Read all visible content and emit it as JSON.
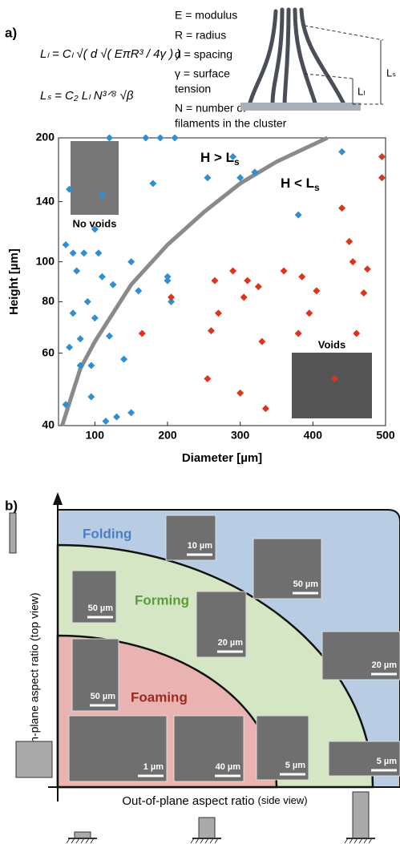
{
  "panel_labels": [
    "a)",
    "b)"
  ],
  "equations": [
    "Lₗ = Cₗ √( d √( EπR³ / 4γ ) )",
    "Lₛ = C₂ Lₗ N³ᐟ⁸ √β"
  ],
  "definitions": [
    "E = modulus",
    "R = radius",
    "d = spacing",
    "γ = surface",
    "tension",
    "N = number of",
    "filaments in the cluster"
  ],
  "schematic_labels": [
    "Lₛ",
    "Lₗ"
  ],
  "chart_data": {
    "type": "scatter",
    "xlabel": "Diameter [µm]",
    "ylabel": "Height [µm]",
    "xlim": [
      50,
      500
    ],
    "ylim": [
      40,
      200
    ],
    "xticks": [
      100,
      200,
      300,
      400,
      500
    ],
    "yticks": [
      40,
      60,
      80,
      100,
      140,
      200
    ],
    "yscale": "log",
    "series": [
      {
        "color": "#2f8fd0",
        "x": [
          60,
          65,
          70,
          75,
          80,
          85,
          90,
          95,
          100,
          105,
          110,
          115,
          120,
          125,
          130,
          140,
          150,
          160,
          170,
          180,
          190,
          200,
          205,
          210,
          100,
          65,
          70,
          120,
          255,
          290,
          300,
          320,
          380,
          440,
          60,
          80,
          95,
          110,
          150,
          200
        ],
        "values": [
          45,
          62,
          75,
          95,
          65,
          105,
          80,
          56,
          73,
          105,
          92,
          41,
          66,
          88,
          42,
          58,
          100,
          85,
          200,
          155,
          200,
          90,
          80,
          200,
          120,
          150,
          105,
          200,
          160,
          180,
          160,
          165,
          130,
          185,
          110,
          56,
          47,
          145,
          43,
          92
        ]
      },
      {
        "color": "#e0331c",
        "x": [
          165,
          205,
          255,
          260,
          265,
          270,
          290,
          300,
          305,
          310,
          325,
          330,
          335,
          360,
          380,
          385,
          395,
          405,
          430,
          440,
          450,
          455,
          460,
          470,
          475,
          495,
          495
        ],
        "values": [
          67,
          82,
          52,
          68,
          90,
          75,
          95,
          48,
          82,
          90,
          87,
          64,
          44,
          95,
          67,
          92,
          75,
          85,
          52,
          135,
          112,
          100,
          67,
          84,
          96,
          160,
          180
        ]
      }
    ],
    "curve": {
      "color": "#8a8a8a",
      "x": [
        55,
        80,
        100,
        150,
        200,
        250,
        300,
        350,
        420
      ],
      "values": [
        40,
        55,
        64,
        88,
        110,
        132,
        155,
        175,
        200
      ]
    },
    "annotations": [
      {
        "text": "H > L",
        "sub": "s"
      },
      {
        "text": "H < L",
        "sub": "s"
      }
    ],
    "inset_labels": [
      "No voids",
      "Voids"
    ]
  },
  "panel_b": {
    "regions": [
      "Folding",
      "Forming",
      "Foaming"
    ],
    "y_axis_label": "In-plane aspect ratio (top view)",
    "x_axis_label": "Out-of-plane aspect ratio",
    "x_axis_note": "(side view)",
    "scale_bars": [
      "10 µm",
      "50 µm",
      "50 µm",
      "20 µm",
      "20 µm",
      "50 µm",
      "1 µm",
      "40 µm",
      "5 µm",
      "5 µm"
    ]
  }
}
